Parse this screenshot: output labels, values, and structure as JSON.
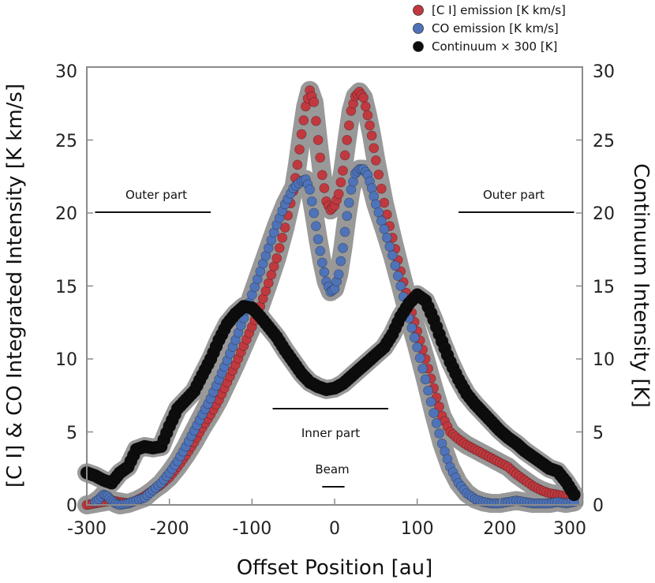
{
  "chart_data": {
    "type": "line",
    "title": "",
    "xlabel": "Offset Position [au]",
    "ylabel": "[C I] & CO Integrated Intensity [K km/s]",
    "y2label": "Continuum Intensity [K]",
    "xlim": [
      -300,
      300
    ],
    "ylim": [
      0,
      30
    ],
    "y2lim": [
      0,
      30
    ],
    "x_ticks": [
      "-300",
      "-200",
      "-100",
      "0",
      "100",
      "200",
      "300"
    ],
    "y_ticks": [
      "0",
      "5",
      "10",
      "15",
      "20",
      "25",
      "30"
    ],
    "y2_ticks": [
      "0",
      "5",
      "10",
      "15",
      "20",
      "25",
      "30"
    ],
    "legend": {
      "placement": "top-right",
      "entries": [
        "[C I] emission [K km/s]",
        "CO emission [K km/s]",
        "Continuum × 300 [K]"
      ]
    },
    "annotations": [
      "Outer part",
      "Outer part",
      "Inner part",
      "Beam"
    ],
    "regions": {
      "outer_left": [
        -290,
        -150
      ],
      "outer_right": [
        150,
        290
      ],
      "inner": [
        -75,
        65
      ],
      "beam": [
        -15,
        12
      ]
    },
    "series": [
      {
        "name": "[C I] emission [K km/s]",
        "color": "#c0393f",
        "x": [
          -300,
          -290,
          -280,
          -270,
          -260,
          -250,
          -240,
          -230,
          -220,
          -210,
          -200,
          -190,
          -180,
          -170,
          -160,
          -150,
          -140,
          -130,
          -120,
          -110,
          -100,
          -90,
          -80,
          -70,
          -60,
          -50,
          -45,
          -40,
          -35,
          -30,
          -25,
          -20,
          -15,
          -10,
          -5,
          0,
          5,
          10,
          15,
          20,
          25,
          30,
          35,
          40,
          45,
          50,
          60,
          70,
          80,
          90,
          100,
          110,
          120,
          130,
          140,
          150,
          160,
          170,
          180,
          190,
          200,
          210,
          220,
          230,
          240,
          250,
          260,
          270,
          280,
          290
        ],
        "y": [
          0.0,
          0.1,
          0.2,
          0.3,
          0.2,
          0.1,
          0.3,
          0.6,
          1.0,
          1.4,
          1.9,
          2.6,
          3.4,
          4.3,
          5.3,
          6.2,
          7.2,
          8.4,
          9.6,
          10.9,
          12.2,
          13.6,
          15.2,
          16.9,
          19.0,
          21.5,
          23.3,
          25.4,
          27.3,
          28.4,
          27.6,
          25.0,
          22.6,
          20.8,
          20.2,
          20.5,
          21.3,
          22.9,
          25.0,
          27.0,
          28.0,
          28.3,
          27.9,
          26.7,
          25.3,
          23.6,
          20.7,
          18.3,
          16.0,
          13.8,
          11.9,
          10.0,
          8.0,
          6.1,
          5.0,
          4.5,
          4.1,
          3.8,
          3.5,
          3.2,
          2.9,
          2.6,
          2.1,
          1.7,
          1.3,
          1.0,
          0.8,
          0.7,
          0.6,
          0.5
        ]
      },
      {
        "name": "CO emission [K km/s]",
        "color": "#4f73b8",
        "x": [
          -290,
          -285,
          -280,
          -275,
          -270,
          -265,
          -260,
          -250,
          -240,
          -230,
          -220,
          -210,
          -200,
          -190,
          -180,
          -170,
          -160,
          -150,
          -140,
          -130,
          -120,
          -110,
          -100,
          -90,
          -80,
          -70,
          -60,
          -50,
          -40,
          -35,
          -30,
          -25,
          -20,
          -15,
          -10,
          -5,
          0,
          5,
          10,
          15,
          20,
          25,
          30,
          35,
          40,
          45,
          50,
          60,
          70,
          80,
          90,
          100,
          110,
          120,
          130,
          140,
          150,
          160,
          170,
          180,
          190,
          200,
          210,
          220,
          230,
          240,
          250,
          260,
          270,
          280,
          290
        ],
        "y": [
          0.2,
          0.4,
          0.7,
          0.6,
          0.3,
          0.1,
          0.0,
          0.1,
          0.3,
          0.5,
          1.0,
          1.5,
          2.2,
          3.0,
          4.0,
          5.1,
          6.2,
          7.3,
          8.6,
          9.9,
          11.3,
          12.8,
          14.4,
          16.0,
          17.6,
          19.2,
          20.6,
          21.7,
          22.2,
          22.3,
          21.6,
          20.0,
          18.2,
          16.6,
          15.3,
          14.6,
          14.8,
          15.8,
          17.6,
          19.8,
          21.6,
          22.7,
          23.0,
          23.0,
          22.6,
          21.7,
          20.6,
          18.9,
          17.1,
          15.0,
          12.8,
          10.8,
          8.6,
          6.3,
          4.2,
          2.6,
          1.5,
          0.8,
          0.4,
          0.2,
          0.1,
          0.1,
          0.2,
          0.3,
          0.2,
          0.1,
          0.1,
          0.1,
          0.2,
          0.1,
          0.2
        ]
      },
      {
        "name": "Continuum × 300 [K]",
        "color": "#0d0d0d",
        "x": [
          -300,
          -290,
          -280,
          -270,
          -260,
          -250,
          -240,
          -230,
          -220,
          -210,
          -200,
          -190,
          -180,
          -170,
          -160,
          -150,
          -140,
          -130,
          -120,
          -110,
          -100,
          -90,
          -80,
          -70,
          -60,
          -50,
          -40,
          -30,
          -20,
          -10,
          0,
          10,
          20,
          30,
          40,
          50,
          60,
          70,
          80,
          90,
          100,
          110,
          120,
          130,
          140,
          150,
          160,
          170,
          180,
          190,
          200,
          210,
          220,
          230,
          240,
          250,
          260,
          270,
          280,
          290
        ],
        "y": [
          2.2,
          2.0,
          1.7,
          1.5,
          2.2,
          2.6,
          3.8,
          4.0,
          3.9,
          4.0,
          5.4,
          6.6,
          7.2,
          7.8,
          8.9,
          10.0,
          11.3,
          12.4,
          13.1,
          13.6,
          13.5,
          12.9,
          12.2,
          11.5,
          10.6,
          9.8,
          9.0,
          8.4,
          8.1,
          7.9,
          8.0,
          8.3,
          8.8,
          9.3,
          9.8,
          10.3,
          10.8,
          11.7,
          12.9,
          13.8,
          14.4,
          14.0,
          12.7,
          11.2,
          9.8,
          8.6,
          7.6,
          6.9,
          6.3,
          5.7,
          5.1,
          4.6,
          4.2,
          3.7,
          3.3,
          2.9,
          2.5,
          2.3,
          1.6,
          0.7
        ]
      }
    ]
  }
}
